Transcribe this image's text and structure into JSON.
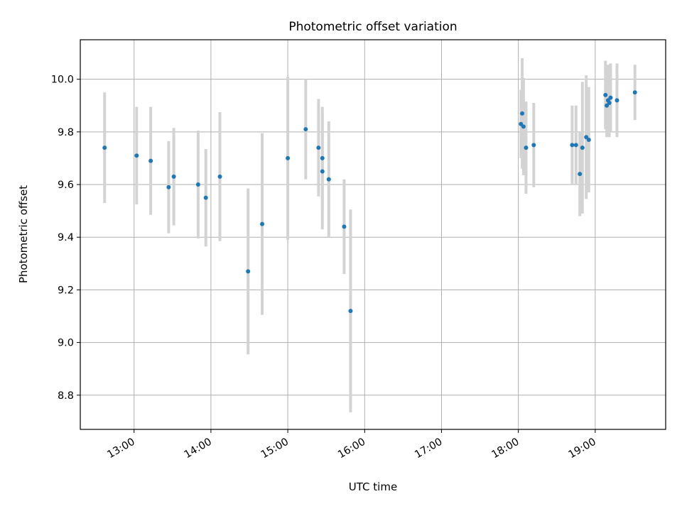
{
  "chart_data": {
    "type": "scatter",
    "title": "Photometric offset variation",
    "xlabel": "UTC time",
    "ylabel": "Photometric offset",
    "x_ticks": [
      "13:00",
      "14:00",
      "15:00",
      "16:00",
      "17:00",
      "18:00",
      "19:00"
    ],
    "y_ticks": [
      "8.8",
      "9.0",
      "9.2",
      "9.4",
      "9.6",
      "9.8",
      "10.0"
    ],
    "xlim": [
      "12:18",
      "19:55"
    ],
    "ylim": [
      8.67,
      10.15
    ],
    "grid": true,
    "error_bars": "vertical",
    "colors": {
      "point": "#1f77b4",
      "errorbar": "#d3d3d3",
      "grid": "#b0b0b0"
    },
    "points": [
      {
        "x": "12:37",
        "y": 9.74,
        "err": 0.21
      },
      {
        "x": "13:02",
        "y": 9.71,
        "err": 0.185
      },
      {
        "x": "13:13",
        "y": 9.69,
        "err": 0.205
      },
      {
        "x": "13:27",
        "y": 9.59,
        "err": 0.175
      },
      {
        "x": "13:31",
        "y": 9.63,
        "err": 0.185
      },
      {
        "x": "13:50",
        "y": 9.6,
        "err": 0.205
      },
      {
        "x": "13:56",
        "y": 9.55,
        "err": 0.185
      },
      {
        "x": "14:07",
        "y": 9.63,
        "err": 0.245
      },
      {
        "x": "14:29",
        "y": 9.27,
        "err": 0.315
      },
      {
        "x": "14:40",
        "y": 9.45,
        "err": 0.345
      },
      {
        "x": "15:00",
        "y": 9.7,
        "err": 0.31
      },
      {
        "x": "15:14",
        "y": 9.81,
        "err": 0.19
      },
      {
        "x": "15:24",
        "y": 9.74,
        "err": 0.185
      },
      {
        "x": "15:27",
        "y": 9.7,
        "err": 0.195
      },
      {
        "x": "15:27",
        "y": 9.65,
        "err": 0.22
      },
      {
        "x": "15:32",
        "y": 9.62,
        "err": 0.22
      },
      {
        "x": "15:44",
        "y": 9.44,
        "err": 0.18
      },
      {
        "x": "15:49",
        "y": 9.12,
        "err": 0.385
      },
      {
        "x": "18:02",
        "y": 9.83,
        "err": 0.13
      },
      {
        "x": "18:03",
        "y": 9.87,
        "err": 0.21
      },
      {
        "x": "18:04",
        "y": 9.82,
        "err": 0.185
      },
      {
        "x": "18:06",
        "y": 9.74,
        "err": 0.175
      },
      {
        "x": "18:12",
        "y": 9.75,
        "err": 0.16
      },
      {
        "x": "18:42",
        "y": 9.75,
        "err": 0.15
      },
      {
        "x": "18:45",
        "y": 9.75,
        "err": 0.15
      },
      {
        "x": "18:48",
        "y": 9.64,
        "err": 0.16
      },
      {
        "x": "18:50",
        "y": 9.74,
        "err": 0.25
      },
      {
        "x": "18:53",
        "y": 9.78,
        "err": 0.235
      },
      {
        "x": "18:55",
        "y": 9.77,
        "err": 0.2
      },
      {
        "x": "19:08",
        "y": 9.94,
        "err": 0.13
      },
      {
        "x": "19:09",
        "y": 9.9,
        "err": 0.12
      },
      {
        "x": "19:10",
        "y": 9.92,
        "err": 0.135
      },
      {
        "x": "19:11",
        "y": 9.91,
        "err": 0.13
      },
      {
        "x": "19:12",
        "y": 9.93,
        "err": 0.13
      },
      {
        "x": "19:17",
        "y": 9.92,
        "err": 0.14
      },
      {
        "x": "19:31",
        "y": 9.95,
        "err": 0.105
      }
    ]
  }
}
